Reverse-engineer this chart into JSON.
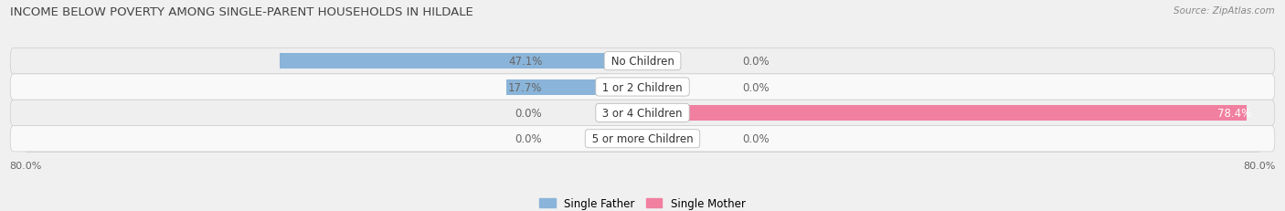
{
  "title": "INCOME BELOW POVERTY AMONG SINGLE-PARENT HOUSEHOLDS IN HILDALE",
  "source": "Source: ZipAtlas.com",
  "categories": [
    "No Children",
    "1 or 2 Children",
    "3 or 4 Children",
    "5 or more Children"
  ],
  "single_father": [
    47.1,
    17.7,
    0.0,
    0.0
  ],
  "single_mother": [
    0.0,
    0.0,
    78.4,
    0.0
  ],
  "father_color": "#8ab4d9",
  "mother_color": "#f07fa0",
  "row_bg_even": "#efefef",
  "row_bg_odd": "#f9f9f9",
  "label_bg_color": "#ffffff",
  "xlim": 80.0,
  "bar_height": 0.6,
  "title_fontsize": 9.5,
  "value_fontsize": 8.5,
  "cat_fontsize": 8.5,
  "axis_fontsize": 8,
  "source_fontsize": 7.5,
  "background_color": "#f0f0f0",
  "text_color": "#555555",
  "value_color_white": "#ffffff",
  "value_color_dark": "#666666"
}
